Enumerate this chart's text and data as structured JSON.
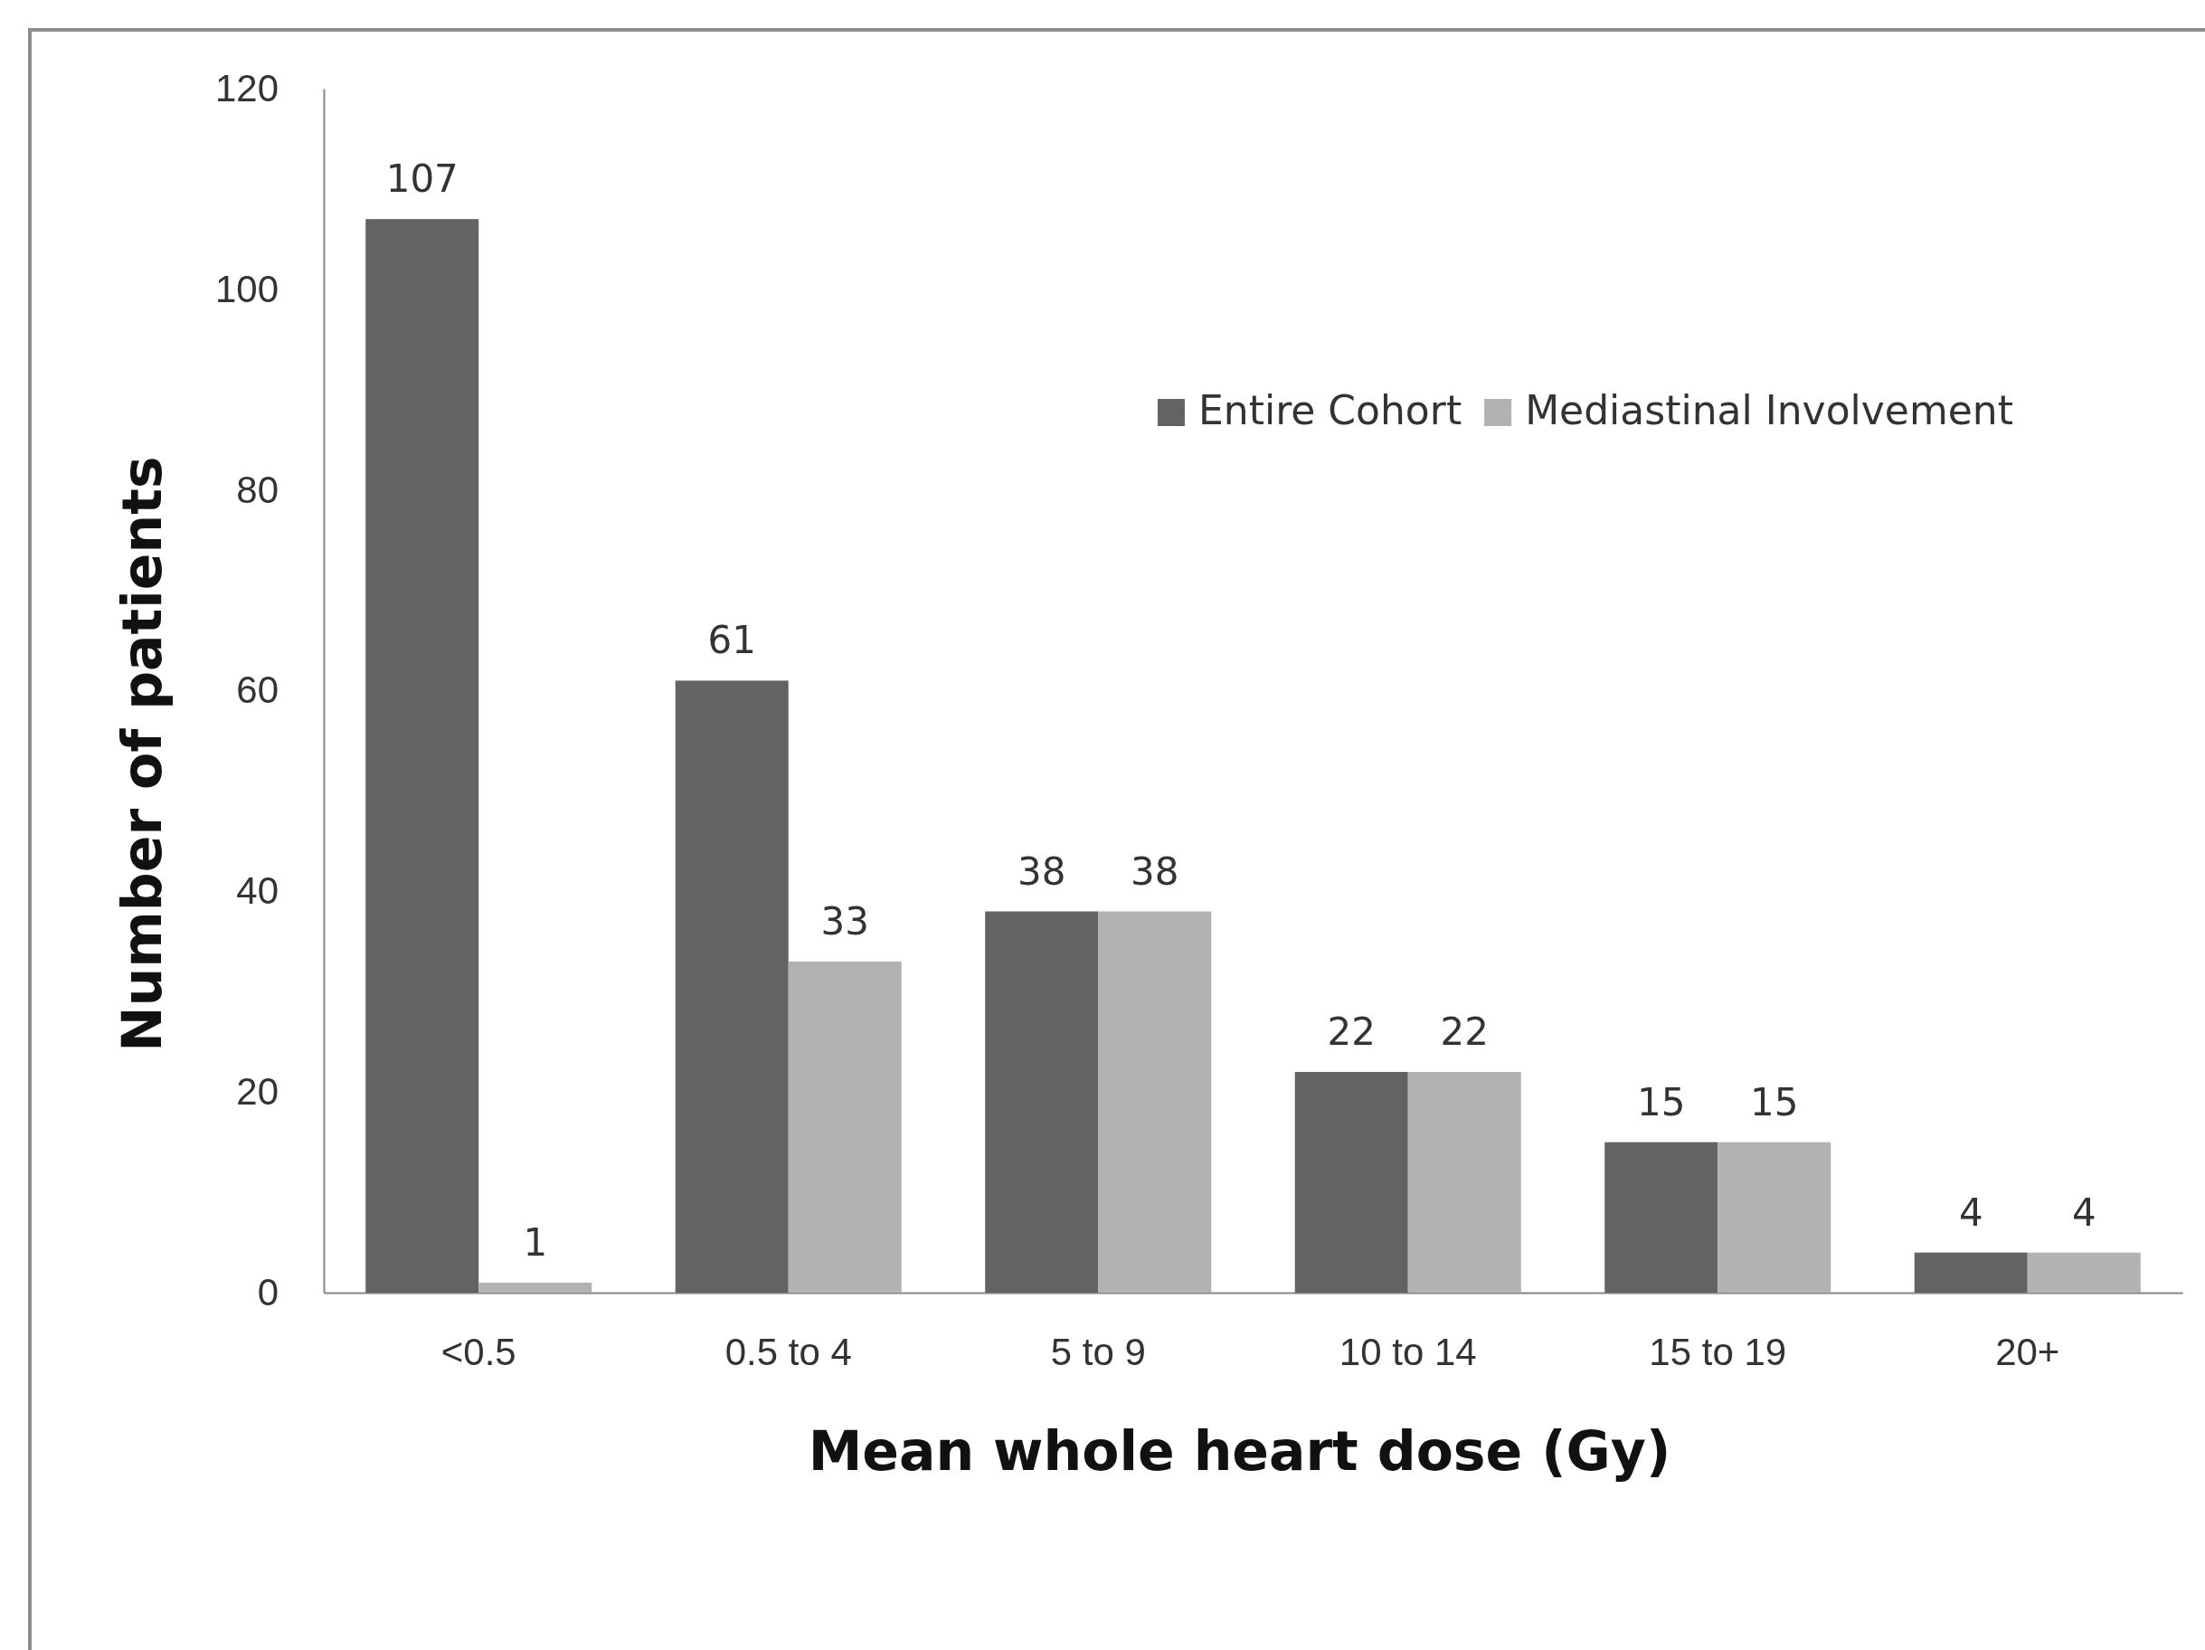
{
  "chart_data": {
    "type": "bar",
    "xlabel": "Mean whole heart dose (Gy)",
    "ylabel": "Number of patients",
    "categories": [
      "<0.5",
      "0.5 to 4",
      "5 to 9",
      "10 to 14",
      "15 to 19",
      "20+"
    ],
    "series": [
      {
        "name": "Entire Cohort",
        "color": "#636363",
        "values": [
          107,
          61,
          38,
          22,
          15,
          4
        ]
      },
      {
        "name": "Mediastinal Involvement",
        "color": "#b2b2b2",
        "values": [
          1,
          33,
          38,
          22,
          15,
          4
        ]
      }
    ],
    "ylim": [
      0,
      120
    ],
    "yticks": [
      0,
      20,
      40,
      60,
      80,
      100,
      120
    ],
    "grid": false,
    "legend": "top right",
    "data_labels": true
  }
}
